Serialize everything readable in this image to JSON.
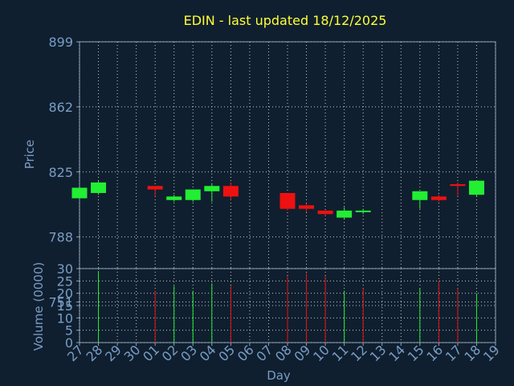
{
  "chart_data": {
    "type": "candlestick",
    "title": "EDIN - last updated 18/12/2025",
    "xlabel": "Day",
    "price_ylabel": "Price",
    "volume_ylabel": "Volume (0000)",
    "price_ylim": [
      770,
      899
    ],
    "price_ticks": [
      899,
      862,
      825,
      788,
      751
    ],
    "volume_ylim": [
      0,
      30
    ],
    "volume_ticks": [
      30,
      25,
      20,
      15,
      10,
      5,
      0
    ],
    "x_tick_labels": [
      "27",
      "28",
      "29",
      "30",
      "01",
      "02",
      "03",
      "04",
      "05",
      "06",
      "07",
      "08",
      "09",
      "10",
      "11",
      "12",
      "13",
      "14",
      "15",
      "16",
      "17",
      "18",
      "19"
    ],
    "grid": true,
    "colors": {
      "background": "#0f1f2f",
      "plot_background": "#0f1f2f",
      "title": "#ffff33",
      "axis_text": "#7a9cc4",
      "up": "#22ee33",
      "down": "#ee1111",
      "grid": "#c8c8c8"
    },
    "candles": [
      {
        "day": "27",
        "open": 810,
        "close": 816,
        "high": 816,
        "low": 809
      },
      {
        "day": "28",
        "open": 813,
        "close": 819,
        "high": 820,
        "low": 812
      },
      {
        "day": "01",
        "open": 817,
        "close": 815,
        "high": 817,
        "low": 811
      },
      {
        "day": "02",
        "open": 809,
        "close": 811,
        "high": 812,
        "low": 808
      },
      {
        "day": "03",
        "open": 809,
        "close": 815,
        "high": 815,
        "low": 808
      },
      {
        "day": "04",
        "open": 814,
        "close": 817,
        "high": 818,
        "low": 808
      },
      {
        "day": "05",
        "open": 817,
        "close": 811,
        "high": 819,
        "low": 809
      },
      {
        "day": "08",
        "open": 813,
        "close": 804,
        "high": 813,
        "low": 803
      },
      {
        "day": "09",
        "open": 806,
        "close": 804,
        "high": 807,
        "low": 802
      },
      {
        "day": "10",
        "open": 803,
        "close": 801,
        "high": 803,
        "low": 800
      },
      {
        "day": "11",
        "open": 799,
        "close": 803,
        "high": 805,
        "low": 798
      },
      {
        "day": "12",
        "open": 803,
        "close": 803,
        "high": 804,
        "low": 801
      },
      {
        "day": "15",
        "open": 809,
        "close": 814,
        "high": 814,
        "low": 804
      },
      {
        "day": "16",
        "open": 811,
        "close": 809,
        "high": 812,
        "low": 808
      },
      {
        "day": "17",
        "open": 818,
        "close": 817,
        "high": 819,
        "low": 811
      },
      {
        "day": "18",
        "open": 812,
        "close": 820,
        "high": 820,
        "low": 811
      }
    ],
    "volumes": [
      {
        "day": "28",
        "value": 29,
        "direction": "up"
      },
      {
        "day": "01",
        "value": 21,
        "direction": "down"
      },
      {
        "day": "02",
        "value": 23,
        "direction": "up"
      },
      {
        "day": "03",
        "value": 21,
        "direction": "up"
      },
      {
        "day": "04",
        "value": 24,
        "direction": "up"
      },
      {
        "day": "05",
        "value": 23,
        "direction": "down"
      },
      {
        "day": "08",
        "value": 27,
        "direction": "down"
      },
      {
        "day": "09",
        "value": 28,
        "direction": "down"
      },
      {
        "day": "10",
        "value": 27,
        "direction": "down"
      },
      {
        "day": "11",
        "value": 21,
        "direction": "up"
      },
      {
        "day": "12",
        "value": 22,
        "direction": "down"
      },
      {
        "day": "15",
        "value": 22,
        "direction": "up"
      },
      {
        "day": "16",
        "value": 25,
        "direction": "down"
      },
      {
        "day": "17",
        "value": 22,
        "direction": "down"
      },
      {
        "day": "18",
        "value": 20,
        "direction": "up"
      }
    ]
  }
}
